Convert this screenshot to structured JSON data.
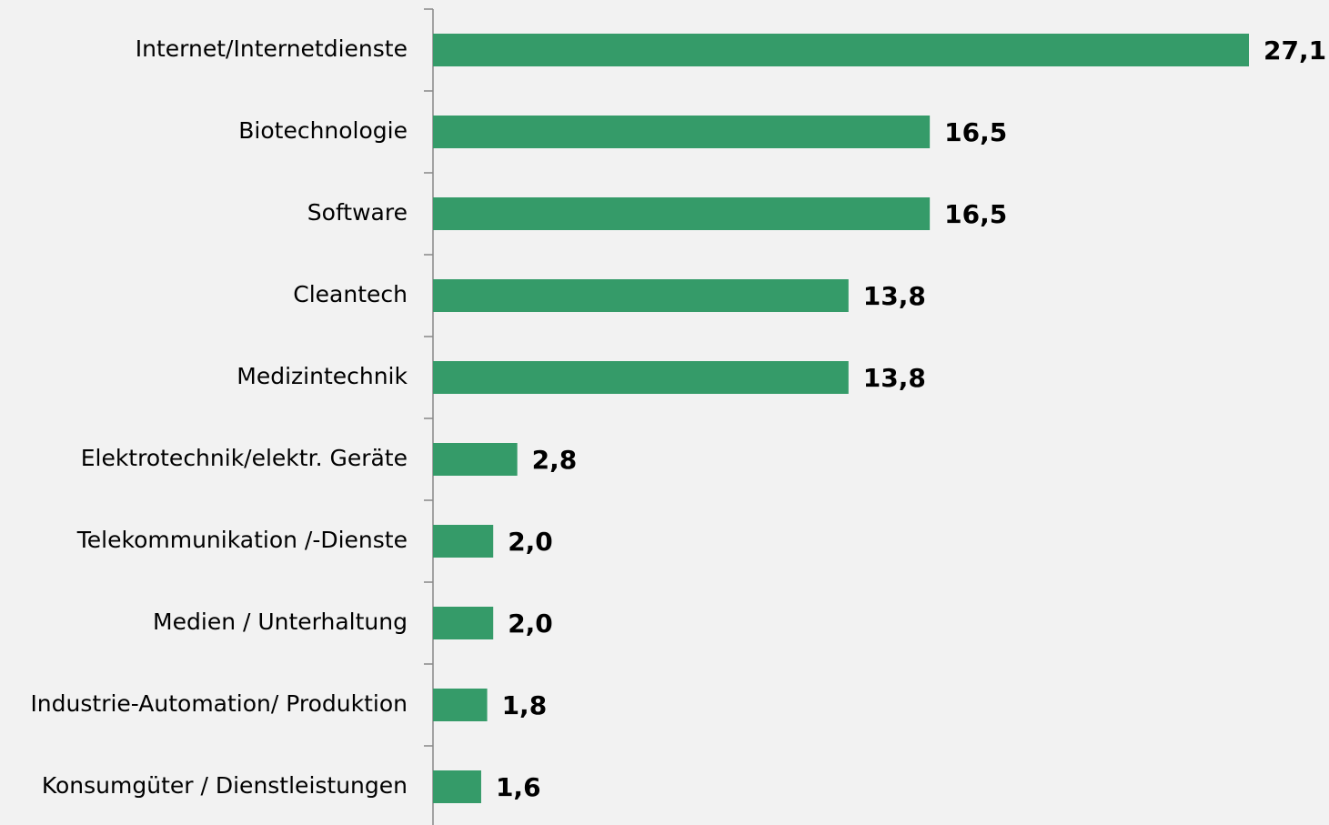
{
  "chart_data": {
    "type": "bar",
    "orientation": "horizontal",
    "categories": [
      "Internet/Internetdienste",
      "Biotechnologie",
      "Software",
      "Cleantech",
      "Medizintechnik",
      "Elektrotechnik/elektr. Geräte",
      "Telekommunikation /-Dienste",
      "Medien / Unterhaltung",
      "Industrie-Automation/ Produktion",
      "Konsumgüter / Dienstleistungen"
    ],
    "values": [
      27.1,
      16.5,
      16.5,
      13.8,
      13.8,
      2.8,
      2.0,
      2.0,
      1.8,
      1.6
    ],
    "value_labels": [
      "27,1",
      "16,5",
      "16,5",
      "13,8",
      "13,8",
      "2,8",
      "2,0",
      "2,0",
      "1,8",
      "1,6"
    ],
    "color": "#359b69"
  }
}
